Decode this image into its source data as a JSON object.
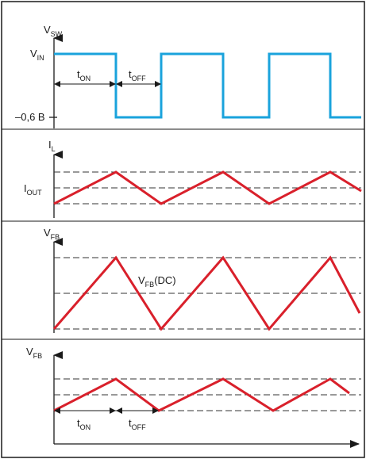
{
  "colors": {
    "switch_wave": "#1aa3dc",
    "ripple_wave": "#d9202b",
    "axis": "#1a1a1a",
    "frame": "#1a1a1a"
  },
  "panel_vsw": {
    "y_label_main": "V",
    "y_label_sub": "SW",
    "vin_label_main": "V",
    "vin_label_sub": "IN",
    "low_level_label": "–0,6 В",
    "ton_label_main": "t",
    "ton_label_sub": "ON",
    "toff_label_main": "t",
    "toff_label_sub": "OFF"
  },
  "panel_il": {
    "y_label_main": "I",
    "y_label_sub": "L",
    "iout_label_main": "I",
    "iout_label_sub": "OUT"
  },
  "panel_vfb1": {
    "y_label_main": "V",
    "y_label_sub": "FB",
    "dc_label_main": "V",
    "dc_label_sub": "FB",
    "dc_label_suffix": "(DC)"
  },
  "panel_vfb2": {
    "y_label_main": "V",
    "y_label_sub": "FB",
    "ton_label_main": "t",
    "ton_label_sub": "ON",
    "toff_label_main": "t",
    "toff_label_sub": "OFF"
  }
}
